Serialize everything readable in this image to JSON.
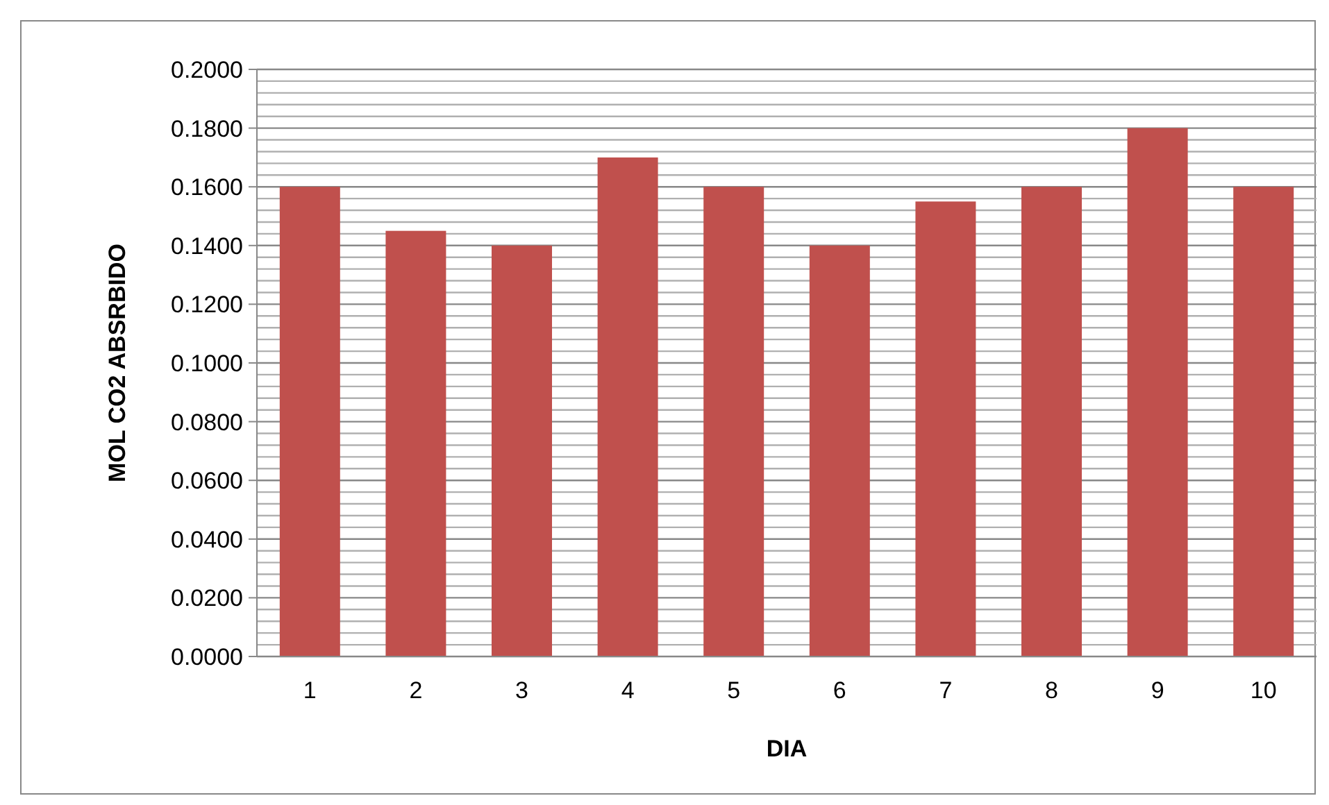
{
  "chart_data": {
    "type": "bar",
    "xlabel": "DIA",
    "ylabel": "MOL CO2 ABSRBIDO",
    "categories": [
      "1",
      "2",
      "3",
      "4",
      "5",
      "6",
      "7",
      "8",
      "9",
      "10"
    ],
    "values": [
      0.16,
      0.145,
      0.14,
      0.17,
      0.16,
      0.14,
      0.155,
      0.16,
      0.18,
      0.16
    ],
    "color": "#c0504d",
    "ylim": [
      0,
      0.2
    ],
    "yticks": [
      {
        "value": 0,
        "label": "0.0000"
      },
      {
        "value": 0.02,
        "label": "0.0200"
      },
      {
        "value": 0.04,
        "label": "0.0400"
      },
      {
        "value": 0.06,
        "label": "0.0600"
      },
      {
        "value": 0.08,
        "label": "0.0800"
      },
      {
        "value": 0.1,
        "label": "0.1000"
      },
      {
        "value": 0.12,
        "label": "0.1200"
      },
      {
        "value": 0.14,
        "label": "0.1400"
      },
      {
        "value": 0.16,
        "label": "0.1600"
      },
      {
        "value": 0.18,
        "label": "0.1800"
      },
      {
        "value": 0.2,
        "label": "0.2000"
      }
    ],
    "grid": true
  }
}
